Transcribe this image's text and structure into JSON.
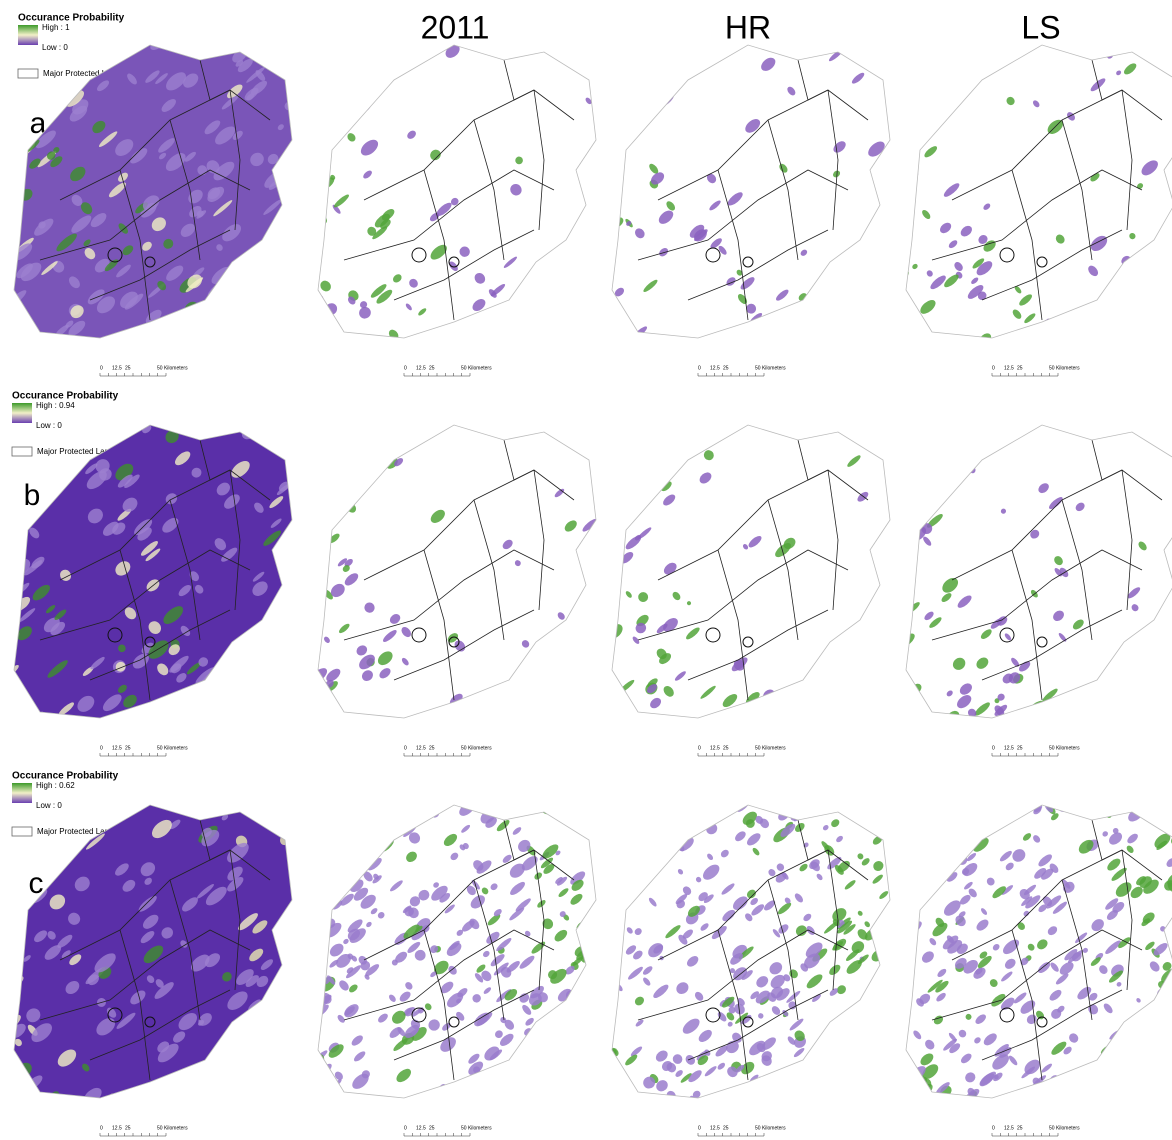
{
  "columns": [
    "2011",
    "HR",
    "LS"
  ],
  "rows": [
    {
      "label": "a",
      "legend": {
        "title": "Occurance Probability",
        "high": "High : 1",
        "low": "Low : 0",
        "protected": "Major Protected Lands"
      },
      "scale": [
        "0",
        "12.5",
        "25",
        "50 Kilometers"
      ]
    },
    {
      "label": "b",
      "legend": {
        "title": "Occurance Probability",
        "high": "High : 0.94",
        "low": "Low : 0",
        "protected": "Major Protected Lands"
      },
      "scale": [
        "0",
        "12.5",
        "25",
        "50 Kilometers"
      ]
    },
    {
      "label": "c",
      "legend": {
        "title": "Occurance Probability",
        "high": "High : 0.62",
        "low": "Low : 0",
        "protected": "Major Protected Lands"
      },
      "scale": [
        "0",
        "12.5",
        "25",
        "50 Kilometers"
      ]
    }
  ]
}
